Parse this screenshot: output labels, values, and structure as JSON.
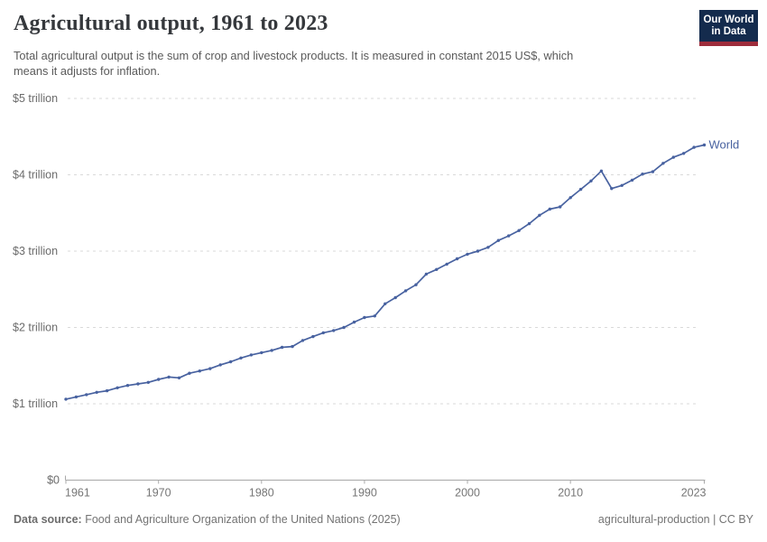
{
  "header": {
    "title": "Agricultural output, 1961 to 2023",
    "subtitle_line1": "Total agricultural output is the sum of crop and livestock products. It is measured in constant 2015 US$, which",
    "subtitle_line2": "means it adjusts for inflation.",
    "logo": {
      "line1": "Our World",
      "line2": "in Data",
      "bg_color": "#142B4D",
      "bar_color": "#9E2D3C"
    }
  },
  "chart_data": {
    "type": "line",
    "title": "Agricultural output, 1961 to 2023",
    "xlabel": "",
    "ylabel": "",
    "xlim": [
      1961,
      2023
    ],
    "ylim": [
      0,
      5
    ],
    "grid": "horizontal-dashed",
    "legend_position": "end-of-line",
    "x_ticks": [
      1961,
      1970,
      1980,
      1990,
      2000,
      2010,
      2023
    ],
    "y_ticks": [
      {
        "value": 0,
        "label": "$0"
      },
      {
        "value": 1,
        "label": "$1 trillion"
      },
      {
        "value": 2,
        "label": "$2 trillion"
      },
      {
        "value": 3,
        "label": "$3 trillion"
      },
      {
        "value": 4,
        "label": "$4 trillion"
      },
      {
        "value": 5,
        "label": "$5 trillion"
      }
    ],
    "unit": "trillion constant 2015 US$",
    "series": [
      {
        "name": "World",
        "color": "#4862a0",
        "x_start": 1961,
        "x_step": 1,
        "values": [
          1.06,
          1.09,
          1.12,
          1.15,
          1.17,
          1.21,
          1.24,
          1.26,
          1.28,
          1.32,
          1.35,
          1.34,
          1.4,
          1.43,
          1.46,
          1.51,
          1.55,
          1.6,
          1.64,
          1.67,
          1.7,
          1.74,
          1.75,
          1.83,
          1.88,
          1.93,
          1.96,
          2.0,
          2.07,
          2.13,
          2.15,
          2.31,
          2.39,
          2.48,
          2.56,
          2.7,
          2.76,
          2.83,
          2.9,
          2.96,
          3.0,
          3.05,
          3.14,
          3.2,
          3.27,
          3.36,
          3.47,
          3.55,
          3.58,
          3.7,
          3.81,
          3.92,
          4.05,
          3.82,
          3.86,
          3.93,
          4.01,
          4.04,
          4.15,
          4.23,
          4.28,
          4.36,
          4.39
        ]
      }
    ]
  },
  "footer": {
    "source_label": "Data source:",
    "source_text": " Food and Agriculture Organization of the United Nations (2025)",
    "right_text": "agricultural-production | CC BY"
  },
  "colors": {
    "line": "#4862a0",
    "gridline": "#d9d9d9",
    "axis": "#a8a8a8",
    "y_tick_label": "#6b6b6b",
    "x_tick_label": "#767676",
    "title": "#35383c",
    "subtitle": "#5a5a5a"
  }
}
